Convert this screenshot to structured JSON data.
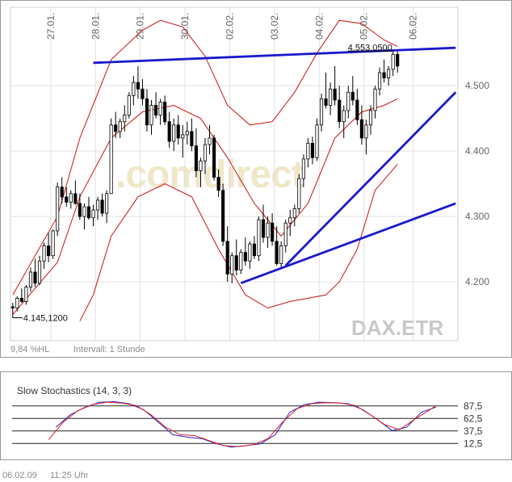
{
  "chart_data": [
    {
      "type": "candlestick",
      "symbol": "DAX.ETR",
      "watermark": ".comdirect",
      "interval_label": "Intervall: 1 Stunde",
      "change_label": "9,84 %HL",
      "high_label": "4.553,0500",
      "low_label": "4.145,1200",
      "x_tick_labels": [
        "27.01.",
        "28.01.",
        "29.01.",
        "30.01.",
        "02.02.",
        "03.02.",
        "04.02.",
        "05.02.",
        "06.02."
      ],
      "y_tick_labels": [
        "4.500",
        "4.400",
        "4.300",
        "4.200"
      ],
      "y_ticks": [
        4500,
        4400,
        4300,
        4200
      ],
      "ylim": [
        4110,
        4620
      ],
      "n_bars": 87,
      "candles": [
        [
          4162,
          4168,
          4145,
          4160
        ],
        [
          4160,
          4178,
          4155,
          4175
        ],
        [
          4175,
          4190,
          4168,
          4170
        ],
        [
          4170,
          4195,
          4165,
          4192
        ],
        [
          4192,
          4222,
          4185,
          4215
        ],
        [
          4215,
          4235,
          4192,
          4198
        ],
        [
          4198,
          4240,
          4195,
          4232
        ],
        [
          4232,
          4260,
          4220,
          4255
        ],
        [
          4255,
          4275,
          4230,
          4240
        ],
        [
          4240,
          4280,
          4235,
          4278
        ],
        [
          4278,
          4352,
          4270,
          4345
        ],
        [
          4345,
          4360,
          4320,
          4330
        ],
        [
          4330,
          4345,
          4315,
          4322
        ],
        [
          4322,
          4340,
          4312,
          4335
        ],
        [
          4335,
          4355,
          4318,
          4320
        ],
        [
          4320,
          4335,
          4295,
          4300
        ],
        [
          4300,
          4320,
          4280,
          4315
        ],
        [
          4315,
          4330,
          4295,
          4298
        ],
        [
          4298,
          4318,
          4285,
          4310
        ],
        [
          4310,
          4330,
          4295,
          4325
        ],
        [
          4325,
          4335,
          4300,
          4305
        ],
        [
          4305,
          4340,
          4290,
          4335
        ],
        [
          4335,
          4450,
          4335,
          4440
        ],
        [
          4440,
          4460,
          4420,
          4430
        ],
        [
          4430,
          4450,
          4420,
          4445
        ],
        [
          4445,
          4470,
          4430,
          4455
        ],
        [
          4455,
          4490,
          4450,
          4485
        ],
        [
          4485,
          4515,
          4470,
          4505
        ],
        [
          4505,
          4530,
          4480,
          4495
        ],
        [
          4495,
          4510,
          4470,
          4480
        ],
        [
          4480,
          4495,
          4430,
          4440
        ],
        [
          4440,
          4478,
          4425,
          4470
        ],
        [
          4470,
          4490,
          4450,
          4455
        ],
        [
          4455,
          4480,
          4440,
          4475
        ],
        [
          4475,
          4485,
          4440,
          4445
        ],
        [
          4445,
          4460,
          4405,
          4415
        ],
        [
          4415,
          4450,
          4400,
          4440
        ],
        [
          4440,
          4455,
          4410,
          4420
        ],
        [
          4420,
          4440,
          4390,
          4425
        ],
        [
          4425,
          4445,
          4410,
          4430
        ],
        [
          4430,
          4450,
          4400,
          4408
        ],
        [
          4408,
          4435,
          4360,
          4370
        ],
        [
          4370,
          4390,
          4345,
          4385
        ],
        [
          4385,
          4420,
          4365,
          4410
        ],
        [
          4410,
          4440,
          4395,
          4420
        ],
        [
          4420,
          4425,
          4355,
          4360
        ],
        [
          4360,
          4372,
          4330,
          4340
        ],
        [
          4340,
          4350,
          4255,
          4262
        ],
        [
          4262,
          4285,
          4200,
          4212
        ],
        [
          4212,
          4245,
          4198,
          4240
        ],
        [
          4240,
          4265,
          4210,
          4218
        ],
        [
          4218,
          4250,
          4212,
          4245
        ],
        [
          4245,
          4268,
          4225,
          4232
        ],
        [
          4232,
          4262,
          4220,
          4258
        ],
        [
          4258,
          4270,
          4235,
          4240
        ],
        [
          4240,
          4300,
          4232,
          4295
        ],
        [
          4295,
          4318,
          4260,
          4268
        ],
        [
          4268,
          4300,
          4252,
          4290
        ],
        [
          4290,
          4305,
          4255,
          4262
        ],
        [
          4262,
          4285,
          4225,
          4228
        ],
        [
          4228,
          4262,
          4222,
          4255
        ],
        [
          4255,
          4295,
          4245,
          4290
        ],
        [
          4290,
          4310,
          4270,
          4298
        ],
        [
          4298,
          4318,
          4285,
          4312
        ],
        [
          4312,
          4365,
          4305,
          4358
        ],
        [
          4358,
          4395,
          4345,
          4388
        ],
        [
          4388,
          4420,
          4375,
          4412
        ],
        [
          4412,
          4422,
          4380,
          4390
        ],
        [
          4390,
          4450,
          4385,
          4440
        ],
        [
          4440,
          4488,
          4430,
          4480
        ],
        [
          4480,
          4520,
          4465,
          4470
        ],
        [
          4470,
          4505,
          4455,
          4495
        ],
        [
          4495,
          4530,
          4470,
          4478
        ],
        [
          4478,
          4500,
          4435,
          4445
        ],
        [
          4445,
          4470,
          4420,
          4462
        ],
        [
          4462,
          4500,
          4450,
          4490
        ],
        [
          4490,
          4515,
          4470,
          4478
        ],
        [
          4478,
          4495,
          4440,
          4448
        ],
        [
          4448,
          4470,
          4410,
          4420
        ],
        [
          4420,
          4448,
          4395,
          4440
        ],
        [
          4440,
          4470,
          4425,
          4462
        ],
        [
          4462,
          4500,
          4450,
          4495
        ],
        [
          4495,
          4528,
          4485,
          4520
        ],
        [
          4520,
          4540,
          4505,
          4512
        ],
        [
          4512,
          4530,
          4500,
          4525
        ],
        [
          4525,
          4553,
          4515,
          4548
        ],
        [
          4548,
          4553,
          4520,
          4530
        ]
      ],
      "bollinger_upper": [
        [
          0,
          4180
        ],
        [
          10,
          4300
        ],
        [
          15,
          4420
        ],
        [
          22,
          4540
        ],
        [
          29,
          4585
        ],
        [
          33,
          4600
        ],
        [
          38,
          4590
        ],
        [
          43,
          4545
        ],
        [
          48,
          4470
        ],
        [
          53,
          4440
        ],
        [
          58,
          4445
        ],
        [
          63,
          4490
        ],
        [
          68,
          4550
        ],
        [
          73,
          4600
        ],
        [
          78,
          4595
        ],
        [
          83,
          4570
        ],
        [
          86,
          4560
        ]
      ],
      "bollinger_middle": [
        [
          0,
          4150
        ],
        [
          10,
          4230
        ],
        [
          15,
          4330
        ],
        [
          22,
          4420
        ],
        [
          29,
          4460
        ],
        [
          36,
          4470
        ],
        [
          42,
          4450
        ],
        [
          48,
          4390
        ],
        [
          54,
          4320
        ],
        [
          60,
          4270
        ],
        [
          66,
          4320
        ],
        [
          72,
          4420
        ],
        [
          78,
          4460
        ],
        [
          83,
          4470
        ],
        [
          86,
          4480
        ]
      ],
      "bollinger_lower": [
        [
          15,
          4140
        ],
        [
          18,
          4180
        ],
        [
          22,
          4270
        ],
        [
          28,
          4330
        ],
        [
          34,
          4350
        ],
        [
          40,
          4330
        ],
        [
          46,
          4250
        ],
        [
          52,
          4180
        ],
        [
          57,
          4160
        ],
        [
          62,
          4170
        ],
        [
          66,
          4175
        ],
        [
          70,
          4180
        ],
        [
          73,
          4200
        ],
        [
          77,
          4250
        ],
        [
          81,
          4340
        ],
        [
          86,
          4380
        ]
      ],
      "trendlines": [
        {
          "from": [
            18,
            4535
          ],
          "to": [
            99,
            4558
          ]
        },
        {
          "from": [
            51,
            4198
          ],
          "to": [
            99,
            4320
          ]
        },
        {
          "from": [
            61,
            4225
          ],
          "to": [
            99,
            4490
          ]
        }
      ]
    },
    {
      "type": "line",
      "title": "Slow Stochastics (14, 3, 3)",
      "y_tick_labels": [
        "87,5",
        "62,5",
        "37,5",
        "12,5"
      ],
      "y_ticks": [
        87.5,
        62.5,
        37.5,
        12.5
      ],
      "ylim": [
        0,
        100
      ],
      "series": [
        {
          "color": "#2222cc",
          "points": [
            [
              12,
              45
            ],
            [
              16,
              70
            ],
            [
              20,
              85
            ],
            [
              24,
              95
            ],
            [
              28,
              96
            ],
            [
              32,
              92
            ],
            [
              36,
              80
            ],
            [
              40,
              55
            ],
            [
              44,
              30
            ],
            [
              48,
              25
            ],
            [
              52,
              22
            ],
            [
              56,
              12
            ],
            [
              60,
              5
            ],
            [
              64,
              8
            ],
            [
              68,
              12
            ],
            [
              72,
              30
            ],
            [
              76,
              75
            ],
            [
              80,
              90
            ],
            [
              84,
              95
            ],
            [
              88,
              94
            ],
            [
              92,
              92
            ],
            [
              96,
              80
            ],
            [
              100,
              60
            ],
            [
              104,
              38
            ],
            [
              108,
              45
            ],
            [
              112,
              75
            ],
            [
              116,
              85
            ]
          ]
        },
        {
          "color": "#dd2222",
          "points": [
            [
              10,
              20
            ],
            [
              14,
              55
            ],
            [
              18,
              78
            ],
            [
              22,
              90
            ],
            [
              26,
              95
            ],
            [
              30,
              93
            ],
            [
              34,
              88
            ],
            [
              38,
              70
            ],
            [
              42,
              45
            ],
            [
              46,
              30
            ],
            [
              50,
              28
            ],
            [
              54,
              18
            ],
            [
              58,
              8
            ],
            [
              62,
              6
            ],
            [
              66,
              10
            ],
            [
              70,
              22
            ],
            [
              74,
              55
            ],
            [
              78,
              82
            ],
            [
              82,
              92
            ],
            [
              86,
              94
            ],
            [
              90,
              93
            ],
            [
              94,
              88
            ],
            [
              98,
              70
            ],
            [
              102,
              50
            ],
            [
              106,
              40
            ],
            [
              110,
              60
            ],
            [
              114,
              78
            ],
            [
              116,
              88
            ]
          ]
        }
      ]
    }
  ],
  "footer": {
    "date": "06.02.09",
    "time": "11:25 Uhr"
  }
}
